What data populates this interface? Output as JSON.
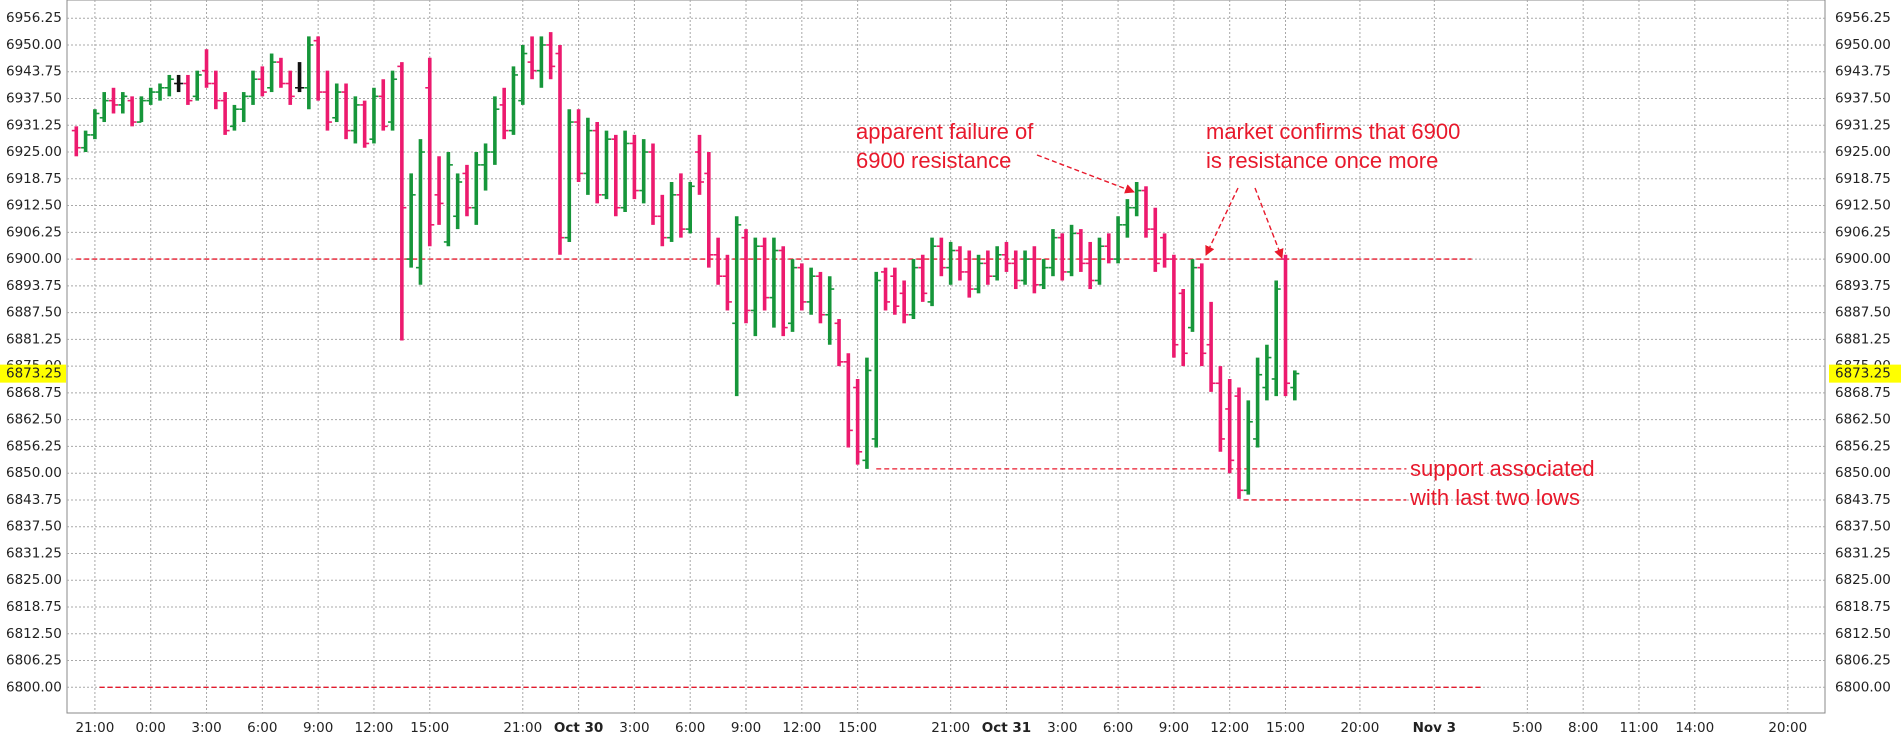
{
  "chart_data": {
    "type": "ohlc",
    "x": [
      -2,
      -1,
      0,
      1,
      2,
      3,
      4,
      5,
      6,
      7,
      8,
      9,
      10,
      11,
      12,
      13,
      14,
      15,
      16,
      17,
      18,
      19,
      20,
      21,
      22,
      23,
      24,
      25,
      26,
      27,
      28,
      29,
      30,
      31,
      32,
      33,
      34,
      35,
      36,
      37,
      38,
      39,
      40,
      41,
      42,
      43,
      44,
      45,
      46,
      47,
      48,
      49,
      50,
      51,
      52,
      53,
      54,
      55,
      56,
      57,
      58,
      59,
      60,
      61,
      62,
      63,
      64,
      65,
      66,
      67,
      68,
      69,
      70,
      71,
      72,
      73,
      74,
      75,
      76,
      77,
      78,
      79,
      80,
      81,
      82,
      83,
      84,
      85,
      86,
      87,
      88,
      89,
      90,
      91,
      92,
      93,
      94,
      95,
      96,
      97,
      98,
      99,
      100,
      101,
      102,
      103,
      104,
      105,
      106,
      107,
      108,
      109,
      110,
      111,
      112,
      113,
      114,
      115,
      116,
      117,
      118,
      119,
      120,
      121,
      122,
      123,
      124,
      125,
      126,
      127,
      128,
      129
    ],
    "open": [
      6930,
      6926,
      6929,
      6933,
      6937,
      6936,
      6937,
      6932,
      6937,
      6939,
      6940,
      6941,
      6941,
      6938,
      6944,
      6941,
      6937,
      6931,
      6935,
      6938,
      6942,
      6940,
      6946,
      6941,
      6940,
      6940,
      6951,
      6939,
      6933,
      6939,
      6930,
      6936,
      6928,
      6938,
      6932,
      6945,
      6900,
      6898,
      6940,
      6915,
      6904,
      6910,
      6920,
      6912,
      6922,
      6925,
      6936,
      6930,
      6937,
      6946,
      6944,
      6950,
      6948,
      6905,
      6932,
      6920,
      6930,
      6915,
      6928,
      6912,
      6927,
      6916,
      6925,
      6910,
      6905,
      6915,
      6907,
      6925,
      6920,
      6901,
      6896,
      6885,
      6905,
      6888,
      6903,
      6891,
      6902,
      6885,
      6898,
      6890,
      6896,
      6887,
      6885,
      6876,
      6870,
      6853,
      6858,
      6897,
      6896,
      6892,
      6887,
      6898,
      6890,
      6903,
      6898,
      6902,
      6897,
      6893,
      6899,
      6896,
      6901,
      6899,
      6895,
      6900,
      6894,
      6898,
      6905,
      6897,
      6906,
      6899,
      6895,
      6903,
      6900,
      6908,
      6912,
      6916,
      6907,
      6905,
      6900,
      6892,
      6884,
      6898,
      6880,
      6871,
      6865,
      6868,
      6846,
      6858,
      6870,
      6872,
      6900,
      6870
    ],
    "high": [
      6931,
      6930,
      6935,
      6939,
      6940,
      6939,
      6938,
      6938,
      6940,
      6941,
      6943,
      6943,
      6943,
      6944,
      6949,
      6944,
      6939,
      6936,
      6939,
      6944,
      6945,
      6948,
      6947,
      6944,
      6946,
      6952,
      6952,
      6944,
      6941,
      6941,
      6938,
      6937,
      6940,
      6942,
      6944,
      6946,
      6920,
      6928,
      6947,
      6924,
      6925,
      6920,
      6922,
      6925,
      6927,
      6938,
      6940,
      6945,
      6950,
      6952,
      6952,
      6953,
      6950,
      6935,
      6935,
      6933,
      6932,
      6930,
      6929,
      6930,
      6929,
      6928,
      6927,
      6915,
      6918,
      6920,
      6918,
      6929,
      6925,
      6905,
      6901,
      6910,
      6907,
      6905,
      6905,
      6905,
      6903,
      6900,
      6899,
      6898,
      6897,
      6896,
      6886,
      6878,
      6872,
      6877,
      6897,
      6898,
      6898,
      6895,
      6900,
      6901,
      6905,
      6905,
      6904,
      6903,
      6902,
      6901,
      6902,
      6903,
      6904,
      6902,
      6902,
      6903,
      6900,
      6907,
      6906,
      6908,
      6907,
      6904,
      6905,
      6906,
      6910,
      6914,
      6918,
      6917,
      6912,
      6906,
      6901,
      6893,
      6900,
      6899,
      6890,
      6875,
      6872,
      6870,
      6867,
      6877,
      6880,
      6895,
      6901,
      6874
    ],
    "low": [
      6924,
      6925,
      6928,
      6932,
      6934,
      6934,
      6931,
      6932,
      6936,
      6937,
      6938,
      6939,
      6936,
      6937,
      6940,
      6935,
      6929,
      6930,
      6932,
      6936,
      6938,
      6939,
      6940,
      6936,
      6939,
      6935,
      6937,
      6930,
      6932,
      6928,
      6927,
      6926,
      6927,
      6930,
      6930,
      6881,
      6898,
      6894,
      6903,
      6908,
      6903,
      6907,
      6910,
      6908,
      6916,
      6922,
      6928,
      6929,
      6936,
      6942,
      6940,
      6942,
      6901,
      6904,
      6918,
      6915,
      6913,
      6914,
      6910,
      6911,
      6914,
      6913,
      6908,
      6903,
      6904,
      6905,
      6906,
      6915,
      6898,
      6894,
      6888,
      6868,
      6885,
      6882,
      6888,
      6884,
      6882,
      6883,
      6888,
      6887,
      6885,
      6880,
      6875,
      6856,
      6852,
      6851,
      6856,
      6888,
      6887,
      6885,
      6886,
      6890,
      6889,
      6896,
      6894,
      6895,
      6891,
      6892,
      6894,
      6895,
      6897,
      6893,
      6894,
      6892,
      6893,
      6896,
      6895,
      6896,
      6897,
      6893,
      6894,
      6899,
      6899,
      6905,
      6910,
      6905,
      6897,
      6898,
      6877,
      6875,
      6883,
      6875,
      6869,
      6855,
      6850,
      6844,
      6845,
      6856,
      6867,
      6868,
      6868,
      6867
    ],
    "close": [
      6926,
      6929,
      6934,
      6937,
      6936,
      6938,
      6932,
      6937,
      6939,
      6940,
      6942,
      6941,
      6937,
      6943,
      6941,
      6937,
      6930,
      6935,
      6938,
      6942,
      6939,
      6946,
      6941,
      6938,
      6940,
      6950,
      6939,
      6932,
      6939,
      6930,
      6936,
      6927,
      6938,
      6931,
      6942,
      6912,
      6915,
      6925,
      6908,
      6913,
      6922,
      6918,
      6912,
      6922,
      6925,
      6935,
      6930,
      6943,
      6948,
      6944,
      6950,
      6945,
      6905,
      6932,
      6920,
      6930,
      6915,
      6928,
      6912,
      6927,
      6916,
      6925,
      6910,
      6905,
      6915,
      6907,
      6917,
      6918,
      6901,
      6896,
      6890,
      6908,
      6888,
      6903,
      6891,
      6902,
      6884,
      6898,
      6890,
      6896,
      6887,
      6893,
      6876,
      6860,
      6855,
      6874,
      6895,
      6890,
      6889,
      6887,
      6898,
      6892,
      6903,
      6898,
      6902,
      6897,
      6893,
      6899,
      6896,
      6901,
      6899,
      6895,
      6900,
      6894,
      6898,
      6905,
      6897,
      6906,
      6899,
      6895,
      6903,
      6900,
      6908,
      6912,
      6916,
      6907,
      6899,
      6900,
      6880,
      6878,
      6898,
      6878,
      6871,
      6858,
      6853,
      6846,
      6862,
      6873,
      6877,
      6893,
      6871,
      6873.25
    ],
    "up_color": "#16963a",
    "down_color": "#ec1a6e",
    "flat_color": "#111111",
    "xlim": [
      -3,
      186
    ],
    "xticks": [
      {
        "value": 0,
        "label": "21:00"
      },
      {
        "value": 6,
        "label": "0:00"
      },
      {
        "value": 12,
        "label": "3:00"
      },
      {
        "value": 18,
        "label": "6:00"
      },
      {
        "value": 24,
        "label": "9:00"
      },
      {
        "value": 30,
        "label": "12:00"
      },
      {
        "value": 36,
        "label": "15:00"
      },
      {
        "value": 46,
        "label": "21:00"
      },
      {
        "value": 52,
        "label": "Oct 30"
      },
      {
        "value": 58,
        "label": "3:00"
      },
      {
        "value": 64,
        "label": "6:00"
      },
      {
        "value": 70,
        "label": "9:00"
      },
      {
        "value": 76,
        "label": "12:00"
      },
      {
        "value": 82,
        "label": "15:00"
      },
      {
        "value": 92,
        "label": "21:00"
      },
      {
        "value": 98,
        "label": "Oct 31"
      },
      {
        "value": 104,
        "label": "3:00"
      },
      {
        "value": 110,
        "label": "6:00"
      },
      {
        "value": 116,
        "label": "9:00"
      },
      {
        "value": 122,
        "label": "12:00"
      },
      {
        "value": 128,
        "label": "15:00"
      },
      {
        "value": 136,
        "label": "20:00"
      },
      {
        "value": 144,
        "label": "Nov 3"
      },
      {
        "value": 154,
        "label": "5:00"
      },
      {
        "value": 160,
        "label": "8:00"
      },
      {
        "value": 166,
        "label": "11:00"
      },
      {
        "value": 172,
        "label": "14:00"
      },
      {
        "value": 182,
        "label": "20:00"
      }
    ],
    "ylim": [
      6794,
      6960.5
    ],
    "yticks": [
      {
        "value": 6800,
        "label": "6800.00"
      },
      6806.25,
      {
        "value": 6812.5,
        "label": "6812.50"
      },
      6818.75,
      {
        "value": 6825,
        "label": "6825.00"
      },
      6831.25,
      {
        "value": 6837.5,
        "label": "6837.50"
      },
      6843.75,
      {
        "value": 6850,
        "label": "6850.00"
      },
      6856.25,
      {
        "value": 6862.5,
        "label": "6862.50"
      },
      6868.75,
      {
        "value": 6875,
        "label": "6875.00"
      },
      6881.25,
      {
        "value": 6887.5,
        "label": "6887.50"
      },
      6893.75,
      {
        "value": 6900,
        "label": "6900.00"
      },
      6906.25,
      {
        "value": 6912.5,
        "label": "6912.50"
      },
      6918.75,
      {
        "value": 6925,
        "label": "6925.00"
      },
      6931.25,
      {
        "value": 6937.5,
        "label": "6937.50"
      },
      6943.75,
      {
        "value": 6950,
        "label": "6950.00"
      },
      6956.25
    ],
    "grid": true,
    "last_price": 6873.25,
    "last_price_color": "#ffff00",
    "reference_lines": [
      {
        "value": 6900
      },
      {
        "value": 6800
      },
      {
        "value": 6851
      },
      {
        "value": 6843.75
      }
    ],
    "reference_color": "#e8192c",
    "annotations": [
      {
        "text": [
          "apparent failure of",
          "6900 resistance"
        ]
      },
      {
        "text": [
          "market confirms that 6900",
          "is resistance once more"
        ]
      },
      {
        "text": [
          "support associated",
          "with last two lows"
        ]
      }
    ]
  }
}
